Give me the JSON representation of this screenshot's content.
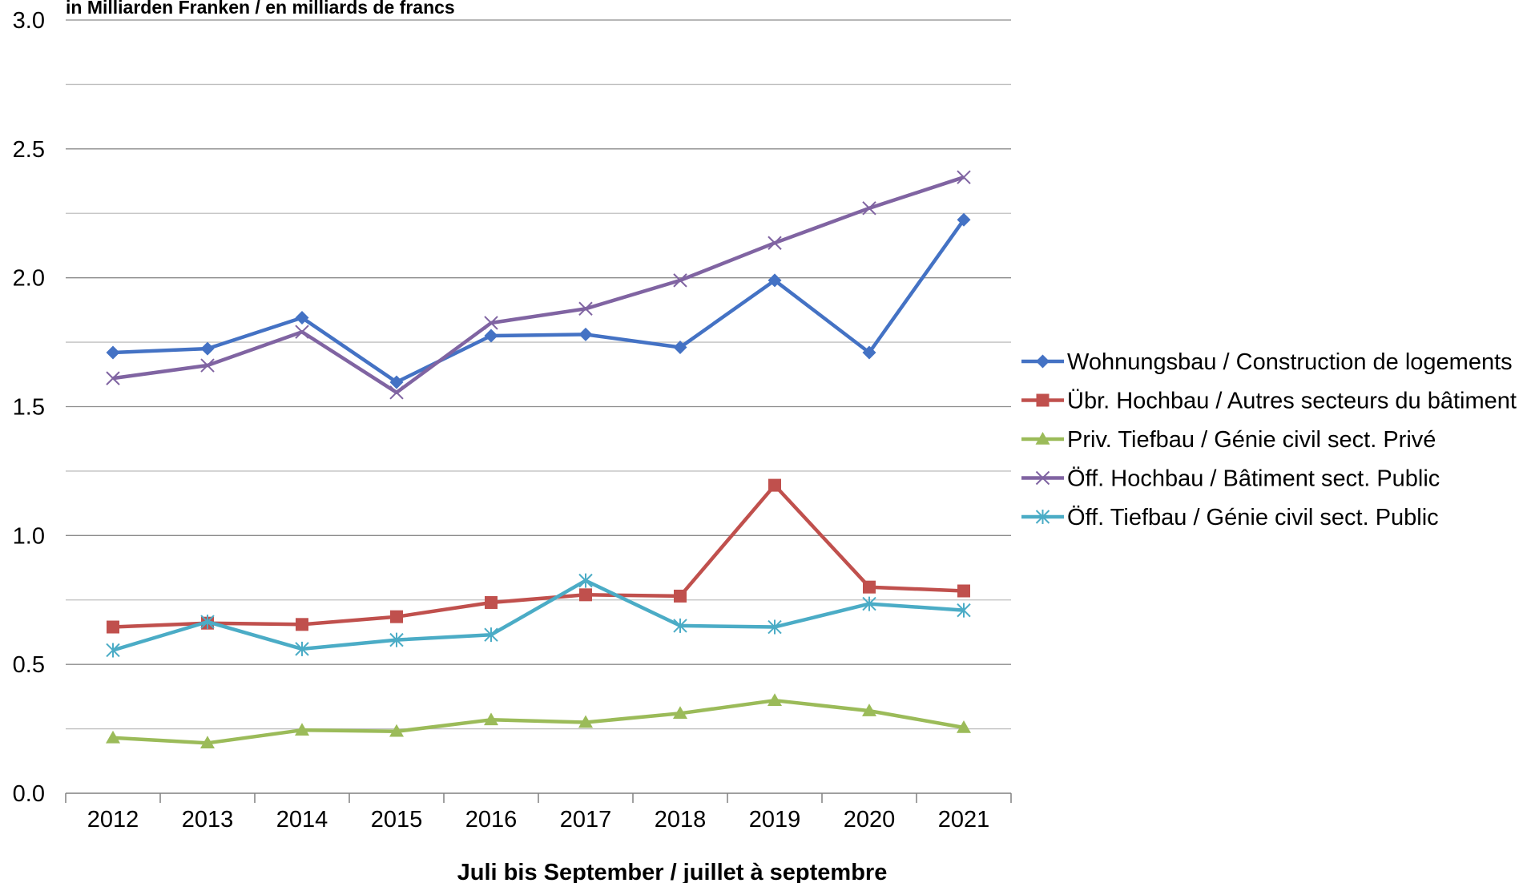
{
  "chart_data": {
    "type": "line",
    "subtitle": "in Milliarden Franken / en milliards de francs",
    "xlabel": "Juli bis September / juillet à septembre",
    "ylabel": "",
    "ylim": [
      0,
      3
    ],
    "yticks": [
      "0.0",
      "0.5",
      "1.0",
      "1.5",
      "2.0",
      "2.5",
      "3.0"
    ],
    "grid": "horizontal",
    "legend_position": "right",
    "categories": [
      "2012",
      "2013",
      "2014",
      "2015",
      "2016",
      "2017",
      "2018",
      "2019",
      "2020",
      "2021"
    ],
    "series": [
      {
        "name": "Wohnungsbau / Construction de logements",
        "color": "#4472C4",
        "marker": "diamond",
        "values": [
          1.71,
          1.725,
          1.845,
          1.595,
          1.775,
          1.78,
          1.73,
          1.99,
          1.71,
          2.225
        ]
      },
      {
        "name": "Übr. Hochbau / Autres secteurs du bâtiment",
        "color": "#C0504D",
        "marker": "square",
        "values": [
          0.645,
          0.66,
          0.655,
          0.685,
          0.74,
          0.77,
          0.765,
          1.195,
          0.8,
          0.785
        ]
      },
      {
        "name": "Priv. Tiefbau / Génie civil sect. Privé",
        "color": "#9BBB59",
        "marker": "triangle",
        "values": [
          0.215,
          0.195,
          0.245,
          0.24,
          0.285,
          0.275,
          0.31,
          0.36,
          0.32,
          0.255
        ]
      },
      {
        "name": "Öff. Hochbau / Bâtiment sect. Public",
        "color": "#8064A2",
        "marker": "x",
        "values": [
          1.61,
          1.66,
          1.79,
          1.555,
          1.825,
          1.88,
          1.99,
          2.135,
          2.27,
          2.39
        ]
      },
      {
        "name": "Öff. Tiefbau / Génie civil sect. Public",
        "color": "#4BACC6",
        "marker": "asterisk",
        "values": [
          0.555,
          0.665,
          0.56,
          0.595,
          0.615,
          0.825,
          0.65,
          0.645,
          0.735,
          0.71
        ]
      }
    ]
  }
}
